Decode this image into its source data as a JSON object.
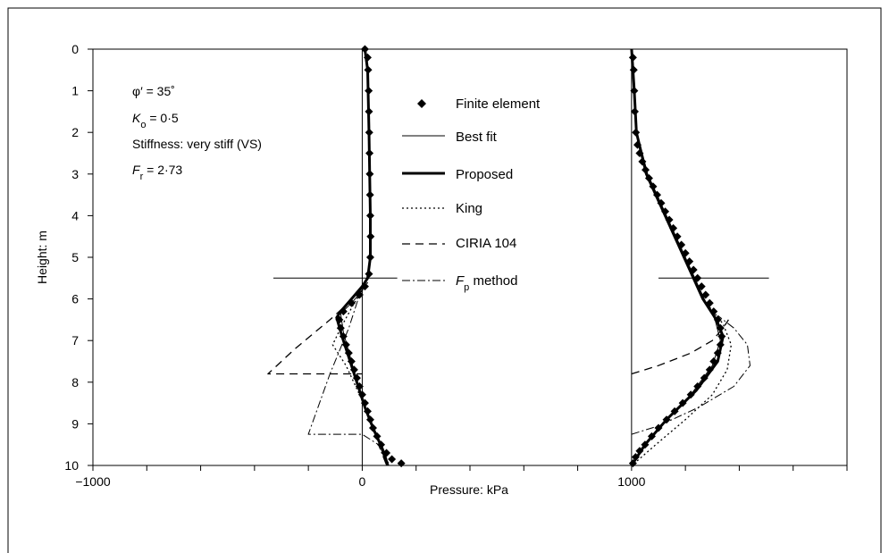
{
  "chart_data": {
    "type": "line",
    "xlabel": "Pressure: kPa",
    "ylabel": "Height: m",
    "xlim": [
      -1000,
      1800
    ],
    "ylim": [
      10,
      0
    ],
    "x_ticks": [
      -1000,
      0,
      1000
    ],
    "x_tick_labels": [
      "−1000",
      "0",
      "1000"
    ],
    "y_ticks": [
      0,
      1,
      2,
      3,
      4,
      5,
      6,
      7,
      8,
      9,
      10
    ],
    "grid": false,
    "legend_position": "center",
    "annotations": {
      "phi": {
        "prefix": "φ′ = 35˚"
      },
      "ko": {
        "symbol": "K",
        "sub": "o",
        "value": " = 0·5"
      },
      "stiffness": {
        "text": "Stiffness: very stiff (VS)"
      },
      "fr": {
        "symbol": "F",
        "sub": "r",
        "value": " = 2·73"
      }
    },
    "legend": [
      {
        "key": "fe",
        "label": "Finite element"
      },
      {
        "key": "best",
        "label": "Best fit"
      },
      {
        "key": "proposed",
        "label": "Proposed"
      },
      {
        "key": "king",
        "label": "King"
      },
      {
        "key": "ciria",
        "label": "CIRIA 104"
      },
      {
        "key": "fp",
        "label": " method",
        "symbol": "F",
        "sub": "p"
      }
    ],
    "reference_lines": {
      "verticals": [
        0,
        1000
      ],
      "horizontal_markers": [
        {
          "y": 5.5,
          "x_from": -330,
          "x_to": 130
        },
        {
          "y": 5.5,
          "x_from": 1100,
          "x_to": 1510
        }
      ]
    },
    "left_profile": {
      "finite_element": [
        [
          10,
          0
        ],
        [
          20,
          0.2
        ],
        [
          22,
          0.5
        ],
        [
          24,
          1
        ],
        [
          25,
          1.5
        ],
        [
          26,
          2
        ],
        [
          27,
          2.5
        ],
        [
          28,
          3
        ],
        [
          29,
          3.5
        ],
        [
          30,
          4
        ],
        [
          31,
          4.5
        ],
        [
          30,
          5
        ],
        [
          25,
          5.4
        ],
        [
          10,
          5.7
        ],
        [
          -10,
          5.9
        ],
        [
          -40,
          6.1
        ],
        [
          -70,
          6.3
        ],
        [
          -85,
          6.5
        ],
        [
          -80,
          6.7
        ],
        [
          -70,
          6.9
        ],
        [
          -60,
          7.1
        ],
        [
          -50,
          7.3
        ],
        [
          -40,
          7.5
        ],
        [
          -30,
          7.7
        ],
        [
          -20,
          7.9
        ],
        [
          -10,
          8.1
        ],
        [
          0,
          8.3
        ],
        [
          10,
          8.5
        ],
        [
          20,
          8.7
        ],
        [
          30,
          8.9
        ],
        [
          40,
          9.1
        ],
        [
          55,
          9.3
        ],
        [
          70,
          9.5
        ],
        [
          90,
          9.7
        ],
        [
          110,
          9.85
        ],
        [
          145,
          9.95
        ]
      ],
      "best_fit": [
        [
          10,
          0
        ],
        [
          20,
          0.5
        ],
        [
          25,
          2
        ],
        [
          30,
          4
        ],
        [
          30,
          5
        ],
        [
          20,
          5.5
        ],
        [
          0,
          5.8
        ],
        [
          -40,
          6.1
        ],
        [
          -80,
          6.35
        ],
        [
          -70,
          6.8
        ],
        [
          -40,
          7.5
        ],
        [
          -10,
          8.2
        ],
        [
          20,
          8.8
        ],
        [
          60,
          9.4
        ],
        [
          90,
          10
        ]
      ],
      "proposed": [
        [
          10,
          0
        ],
        [
          20,
          0.5
        ],
        [
          25,
          2
        ],
        [
          30,
          4
        ],
        [
          30,
          5
        ],
        [
          20,
          5.5
        ],
        [
          0,
          5.7
        ],
        [
          -40,
          6.0
        ],
        [
          -80,
          6.3
        ],
        [
          -95,
          6.45
        ],
        [
          -75,
          6.9
        ],
        [
          -45,
          7.5
        ],
        [
          -15,
          8.1
        ],
        [
          10,
          8.6
        ],
        [
          40,
          9.1
        ],
        [
          75,
          9.6
        ],
        [
          95,
          10
        ]
      ],
      "king": [
        [
          20,
          5.6
        ],
        [
          -30,
          6.1
        ],
        [
          -80,
          6.7
        ],
        [
          -110,
          7.1
        ],
        [
          -60,
          7.6
        ],
        [
          -10,
          8.3
        ],
        [
          30,
          8.9
        ],
        [
          70,
          9.5
        ],
        [
          100,
          10
        ]
      ],
      "ciria": [
        [
          0,
          5.8
        ],
        [
          -120,
          6.5
        ],
        [
          -250,
          7.2
        ],
        [
          -350,
          7.8
        ],
        [
          0,
          7.8
        ]
      ],
      "fp": [
        [
          0,
          5.7
        ],
        [
          -50,
          6.7
        ],
        [
          -120,
          7.8
        ],
        [
          -200,
          9.25
        ],
        [
          0,
          9.25
        ],
        [
          60,
          9.5
        ],
        [
          90,
          10
        ]
      ]
    },
    "right_profile": {
      "finite_element": [
        [
          1005,
          0.2
        ],
        [
          1008,
          0.5
        ],
        [
          1010,
          1
        ],
        [
          1012,
          1.5
        ],
        [
          1016,
          2
        ],
        [
          1022,
          2.3
        ],
        [
          1030,
          2.5
        ],
        [
          1040,
          2.7
        ],
        [
          1052,
          2.9
        ],
        [
          1065,
          3.1
        ],
        [
          1080,
          3.3
        ],
        [
          1095,
          3.5
        ],
        [
          1110,
          3.7
        ],
        [
          1125,
          3.9
        ],
        [
          1140,
          4.1
        ],
        [
          1155,
          4.3
        ],
        [
          1170,
          4.5
        ],
        [
          1185,
          4.7
        ],
        [
          1200,
          4.9
        ],
        [
          1215,
          5.1
        ],
        [
          1230,
          5.3
        ],
        [
          1245,
          5.5
        ],
        [
          1260,
          5.7
        ],
        [
          1275,
          5.9
        ],
        [
          1290,
          6.1
        ],
        [
          1305,
          6.3
        ],
        [
          1320,
          6.5
        ],
        [
          1330,
          6.7
        ],
        [
          1335,
          6.9
        ],
        [
          1330,
          7.1
        ],
        [
          1320,
          7.3
        ],
        [
          1305,
          7.5
        ],
        [
          1290,
          7.7
        ],
        [
          1270,
          7.9
        ],
        [
          1245,
          8.1
        ],
        [
          1220,
          8.3
        ],
        [
          1190,
          8.5
        ],
        [
          1160,
          8.7
        ],
        [
          1130,
          8.9
        ],
        [
          1100,
          9.1
        ],
        [
          1075,
          9.3
        ],
        [
          1050,
          9.5
        ],
        [
          1030,
          9.65
        ],
        [
          1015,
          9.8
        ],
        [
          1005,
          9.95
        ]
      ],
      "best_fit": [
        [
          1000,
          0
        ],
        [
          1010,
          1
        ],
        [
          1020,
          2
        ],
        [
          1060,
          3
        ],
        [
          1130,
          4
        ],
        [
          1200,
          5
        ],
        [
          1270,
          6
        ],
        [
          1310,
          6.5
        ],
        [
          1330,
          7
        ],
        [
          1300,
          7.6
        ],
        [
          1220,
          8.3
        ],
        [
          1120,
          9
        ],
        [
          1040,
          9.6
        ],
        [
          1000,
          10
        ]
      ],
      "proposed": [
        [
          1000,
          0
        ],
        [
          1010,
          1
        ],
        [
          1018,
          2
        ],
        [
          1055,
          3
        ],
        [
          1125,
          4
        ],
        [
          1195,
          5
        ],
        [
          1265,
          6
        ],
        [
          1315,
          6.5
        ],
        [
          1340,
          6.9
        ],
        [
          1320,
          7.5
        ],
        [
          1240,
          8.2
        ],
        [
          1130,
          8.9
        ],
        [
          1050,
          9.5
        ],
        [
          1000,
          10
        ]
      ],
      "king": [
        [
          1290,
          6.2
        ],
        [
          1340,
          6.6
        ],
        [
          1370,
          7.1
        ],
        [
          1355,
          7.7
        ],
        [
          1300,
          8.3
        ],
        [
          1200,
          8.9
        ],
        [
          1090,
          9.5
        ],
        [
          1010,
          9.95
        ]
      ],
      "ciria": [
        [
          1000,
          7.8
        ],
        [
          1100,
          7.6
        ],
        [
          1220,
          7.3
        ],
        [
          1300,
          7.0
        ],
        [
          1340,
          6.7
        ],
        [
          1360,
          6.5
        ]
      ],
      "fp": [
        [
          1000,
          9.25
        ],
        [
          1100,
          9.05
        ],
        [
          1250,
          8.6
        ],
        [
          1380,
          8.1
        ],
        [
          1440,
          7.6
        ],
        [
          1430,
          7.1
        ],
        [
          1380,
          6.7
        ],
        [
          1320,
          6.4
        ]
      ]
    }
  }
}
